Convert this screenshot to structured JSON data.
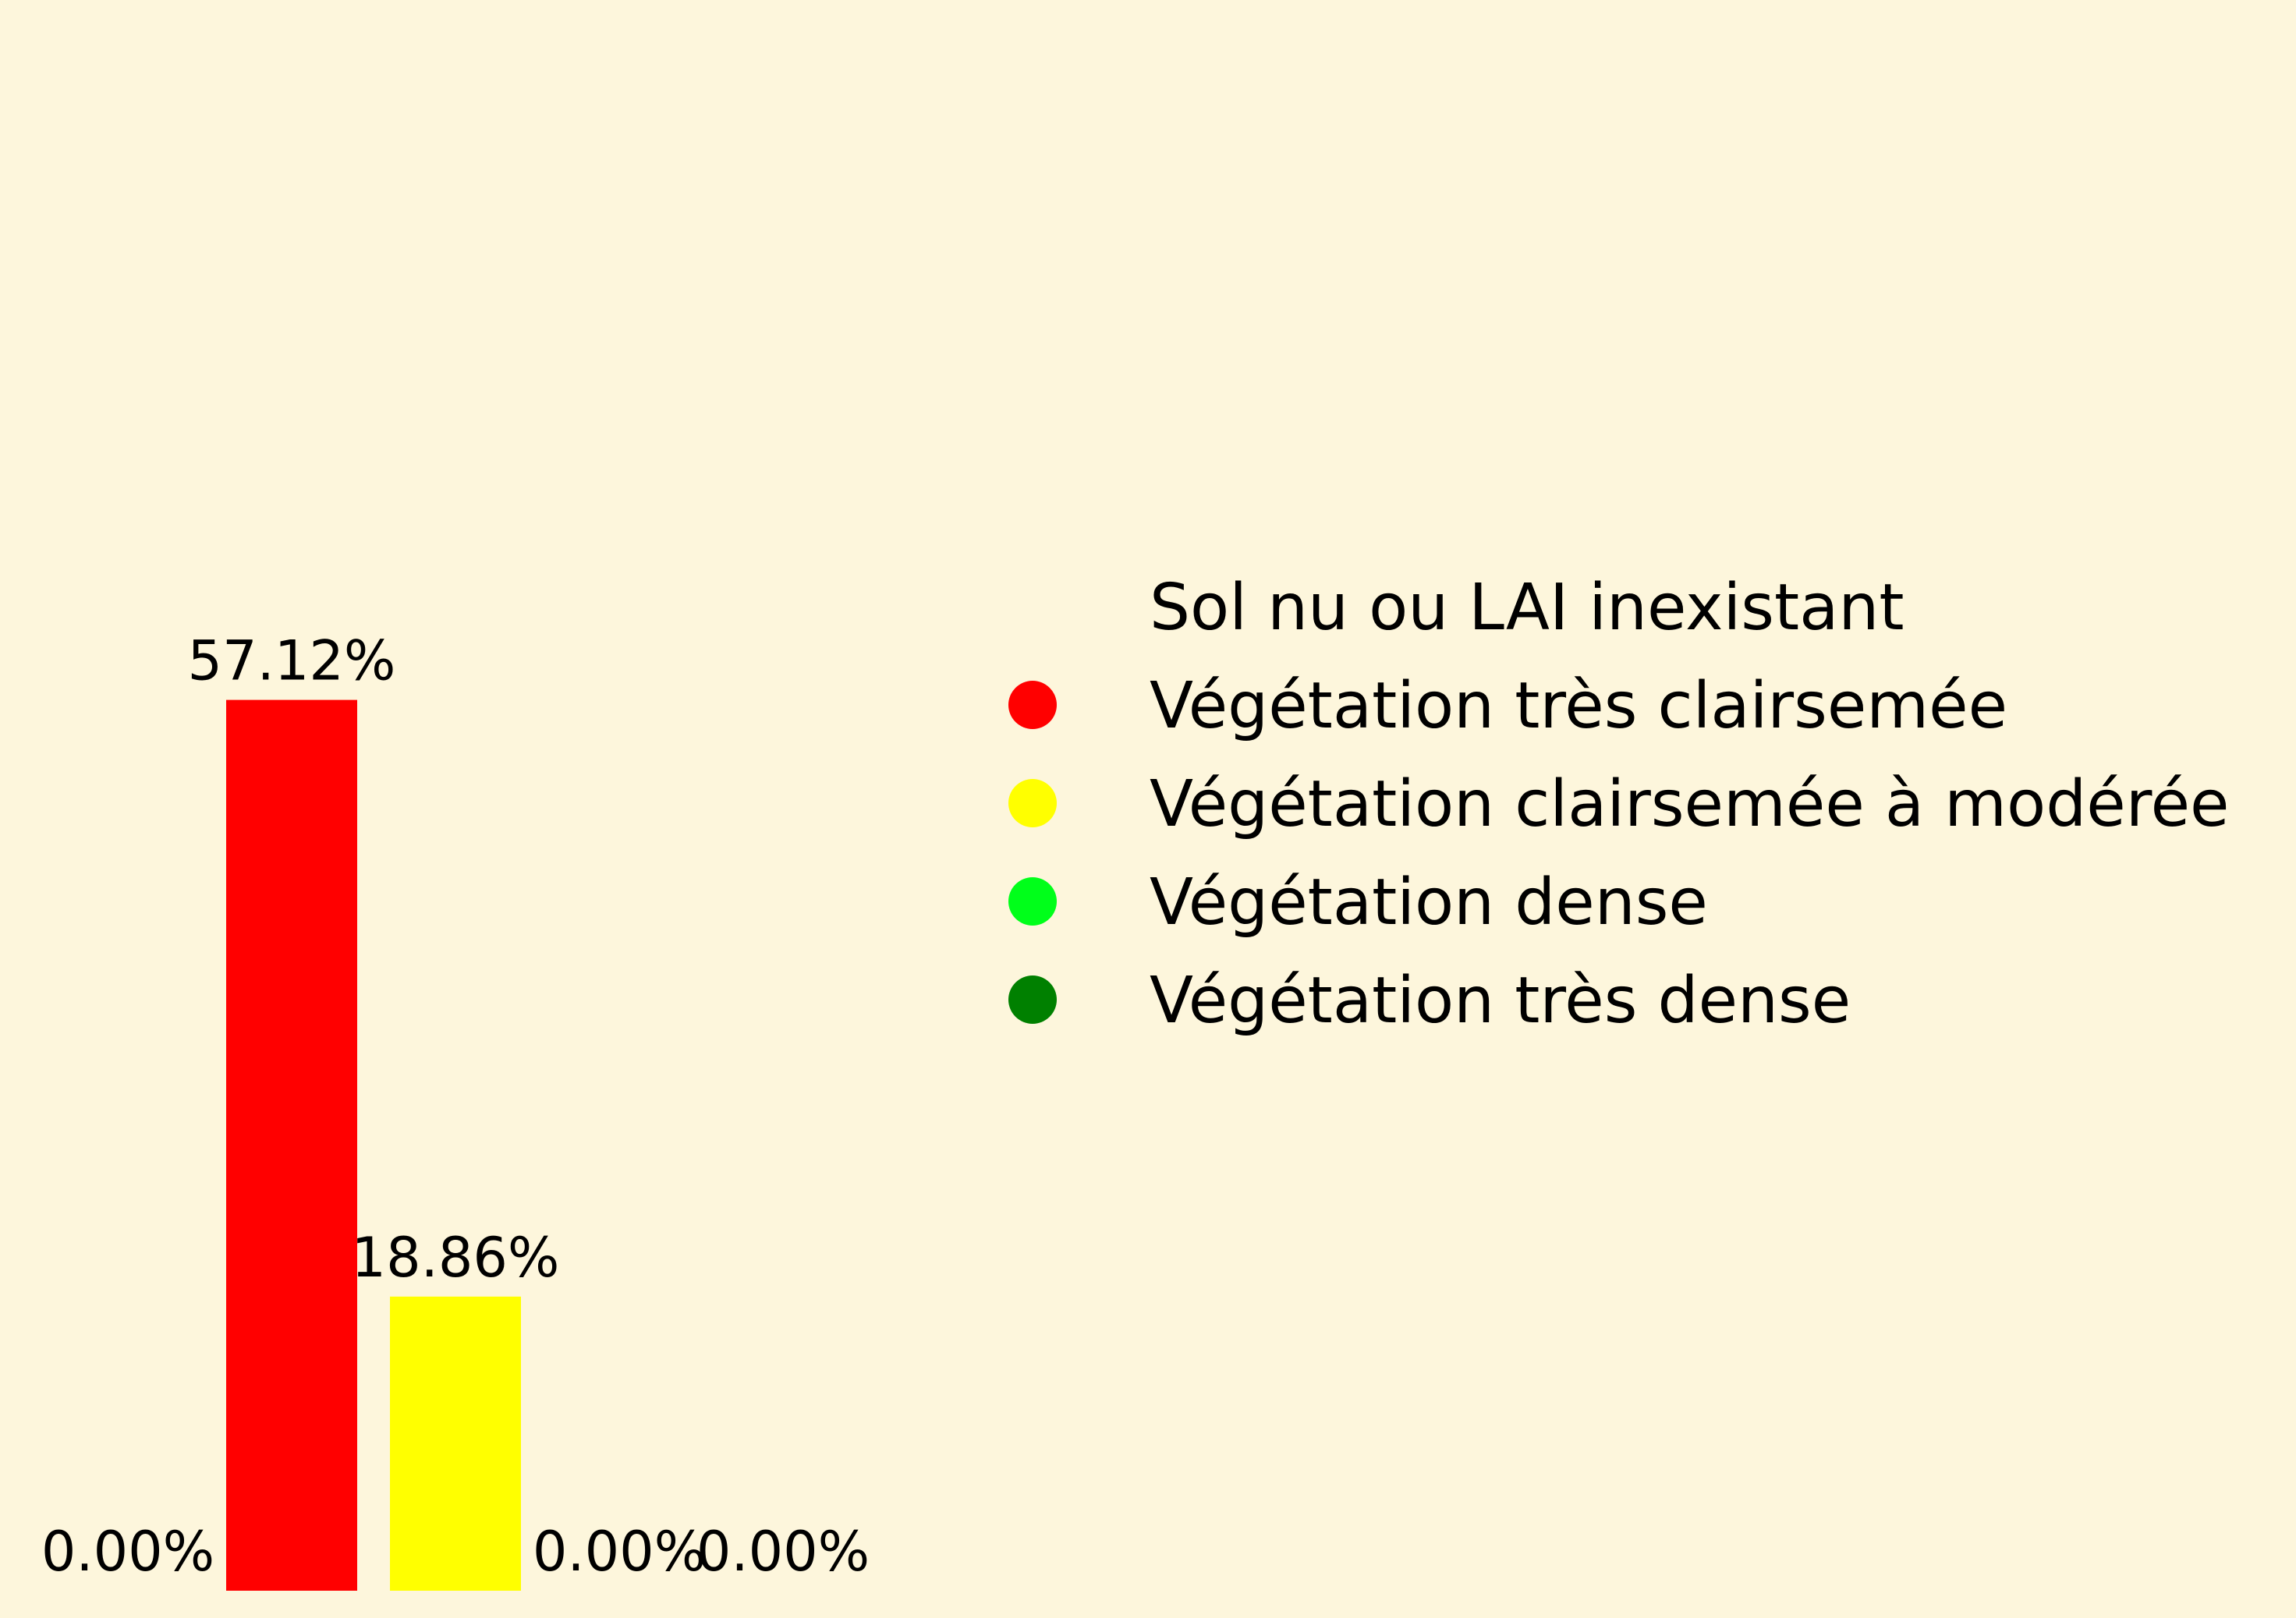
{
  "chart_data": {
    "type": "bar",
    "categories": [
      "Sol nu ou LAI inexistant",
      "Végétation très clairsemée",
      "Végétation clairsemée à modérée",
      "Végétation dense",
      "Végétation très dense"
    ],
    "values": [
      0.0,
      57.12,
      18.86,
      0.0,
      0.0
    ],
    "value_labels": [
      "0.00%",
      "57.12%",
      "18.86%",
      "0.00%",
      "0.00%"
    ],
    "colors": [
      "#fdf6dc",
      "#ff0000",
      "#ffff00",
      "#00ff1a",
      "#008000"
    ],
    "ylim": [
      0,
      100
    ],
    "title": "",
    "xlabel": "",
    "ylabel": "",
    "grid": false,
    "axes_visible": false,
    "legend_position": "right",
    "background": "#fdf6dc"
  }
}
